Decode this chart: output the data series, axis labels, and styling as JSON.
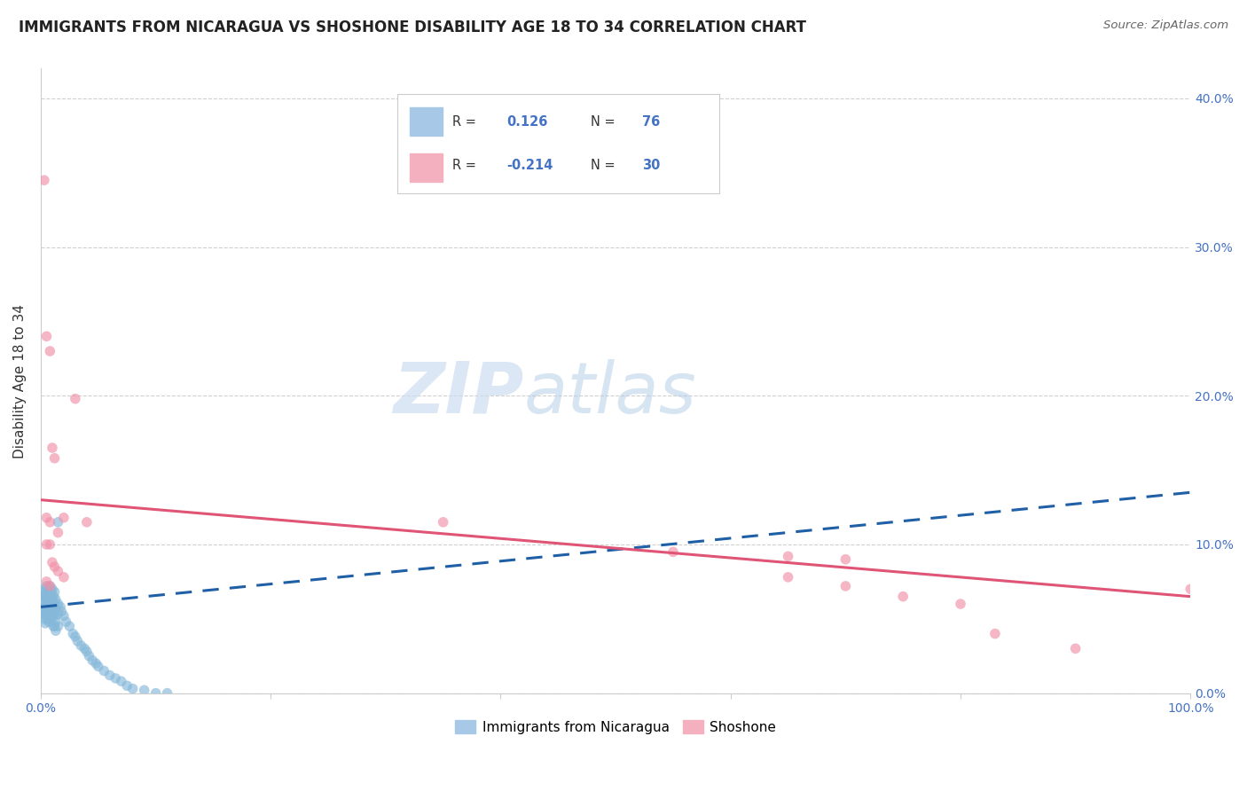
{
  "title": "IMMIGRANTS FROM NICARAGUA VS SHOSHONE DISABILITY AGE 18 TO 34 CORRELATION CHART",
  "source": "Source: ZipAtlas.com",
  "ylabel": "Disability Age 18 to 34",
  "xlim": [
    0.0,
    1.0
  ],
  "ylim": [
    0.0,
    0.42
  ],
  "yticks": [
    0.0,
    0.1,
    0.2,
    0.3,
    0.4
  ],
  "ytick_labels": [
    "0.0%",
    "10.0%",
    "20.0%",
    "30.0%",
    "40.0%"
  ],
  "xticks": [
    0.0,
    0.2,
    0.4,
    0.6,
    0.8,
    1.0
  ],
  "xtick_labels": [
    "0.0%",
    "",
    "",
    "",
    "",
    "100.0%"
  ],
  "r_blue": 0.126,
  "n_blue": 76,
  "r_pink": -0.214,
  "n_pink": 30,
  "watermark_zip": "ZIP",
  "watermark_atlas": "atlas",
  "blue_scatter": [
    [
      0.001,
      0.065
    ],
    [
      0.002,
      0.068
    ],
    [
      0.002,
      0.058
    ],
    [
      0.002,
      0.055
    ],
    [
      0.003,
      0.07
    ],
    [
      0.003,
      0.062
    ],
    [
      0.003,
      0.055
    ],
    [
      0.003,
      0.05
    ],
    [
      0.004,
      0.065
    ],
    [
      0.004,
      0.058
    ],
    [
      0.004,
      0.052
    ],
    [
      0.004,
      0.047
    ],
    [
      0.005,
      0.072
    ],
    [
      0.005,
      0.063
    ],
    [
      0.005,
      0.058
    ],
    [
      0.005,
      0.052
    ],
    [
      0.006,
      0.068
    ],
    [
      0.006,
      0.062
    ],
    [
      0.006,
      0.055
    ],
    [
      0.006,
      0.05
    ],
    [
      0.007,
      0.065
    ],
    [
      0.007,
      0.06
    ],
    [
      0.007,
      0.055
    ],
    [
      0.007,
      0.048
    ],
    [
      0.008,
      0.072
    ],
    [
      0.008,
      0.065
    ],
    [
      0.008,
      0.058
    ],
    [
      0.008,
      0.052
    ],
    [
      0.009,
      0.068
    ],
    [
      0.009,
      0.062
    ],
    [
      0.009,
      0.055
    ],
    [
      0.009,
      0.048
    ],
    [
      0.01,
      0.07
    ],
    [
      0.01,
      0.063
    ],
    [
      0.01,
      0.058
    ],
    [
      0.01,
      0.052
    ],
    [
      0.011,
      0.065
    ],
    [
      0.011,
      0.06
    ],
    [
      0.011,
      0.053
    ],
    [
      0.011,
      0.045
    ],
    [
      0.012,
      0.068
    ],
    [
      0.012,
      0.06
    ],
    [
      0.012,
      0.052
    ],
    [
      0.012,
      0.045
    ],
    [
      0.013,
      0.063
    ],
    [
      0.013,
      0.057
    ],
    [
      0.013,
      0.048
    ],
    [
      0.013,
      0.042
    ],
    [
      0.015,
      0.115
    ],
    [
      0.015,
      0.06
    ],
    [
      0.015,
      0.053
    ],
    [
      0.015,
      0.045
    ],
    [
      0.017,
      0.058
    ],
    [
      0.018,
      0.055
    ],
    [
      0.02,
      0.052
    ],
    [
      0.022,
      0.048
    ],
    [
      0.025,
      0.045
    ],
    [
      0.028,
      0.04
    ],
    [
      0.03,
      0.038
    ],
    [
      0.032,
      0.035
    ],
    [
      0.035,
      0.032
    ],
    [
      0.038,
      0.03
    ],
    [
      0.04,
      0.028
    ],
    [
      0.042,
      0.025
    ],
    [
      0.045,
      0.022
    ],
    [
      0.048,
      0.02
    ],
    [
      0.05,
      0.018
    ],
    [
      0.055,
      0.015
    ],
    [
      0.06,
      0.012
    ],
    [
      0.065,
      0.01
    ],
    [
      0.07,
      0.008
    ],
    [
      0.075,
      0.005
    ],
    [
      0.08,
      0.003
    ],
    [
      0.09,
      0.002
    ],
    [
      0.1,
      0.0
    ],
    [
      0.11,
      0.0
    ]
  ],
  "pink_scatter": [
    [
      0.003,
      0.345
    ],
    [
      0.005,
      0.24
    ],
    [
      0.008,
      0.23
    ],
    [
      0.01,
      0.165
    ],
    [
      0.012,
      0.158
    ],
    [
      0.005,
      0.118
    ],
    [
      0.008,
      0.115
    ],
    [
      0.02,
      0.118
    ],
    [
      0.015,
      0.108
    ],
    [
      0.005,
      0.1
    ],
    [
      0.008,
      0.1
    ],
    [
      0.03,
      0.198
    ],
    [
      0.04,
      0.115
    ],
    [
      0.35,
      0.115
    ],
    [
      0.55,
      0.095
    ],
    [
      0.65,
      0.092
    ],
    [
      0.7,
      0.09
    ],
    [
      0.01,
      0.088
    ],
    [
      0.012,
      0.085
    ],
    [
      0.015,
      0.082
    ],
    [
      0.005,
      0.075
    ],
    [
      0.008,
      0.072
    ],
    [
      0.02,
      0.078
    ],
    [
      0.65,
      0.078
    ],
    [
      0.7,
      0.072
    ],
    [
      0.75,
      0.065
    ],
    [
      0.8,
      0.06
    ],
    [
      0.83,
      0.04
    ],
    [
      0.9,
      0.03
    ],
    [
      1.0,
      0.07
    ]
  ],
  "blue_line_y0": 0.058,
  "blue_line_y1": 0.135,
  "pink_line_y0": 0.13,
  "pink_line_y1": 0.065,
  "scatter_size": 70,
  "scatter_alpha": 0.65,
  "blue_color": "#85b8d9",
  "pink_color": "#f090a8",
  "blue_line_color": "#1f5fa6",
  "pink_line_color": "#e05575",
  "grid_color": "#d0d0d0",
  "background_color": "#ffffff",
  "title_fontsize": 12,
  "axis_label_fontsize": 11,
  "tick_fontsize": 10,
  "tick_color": "#4472c4"
}
